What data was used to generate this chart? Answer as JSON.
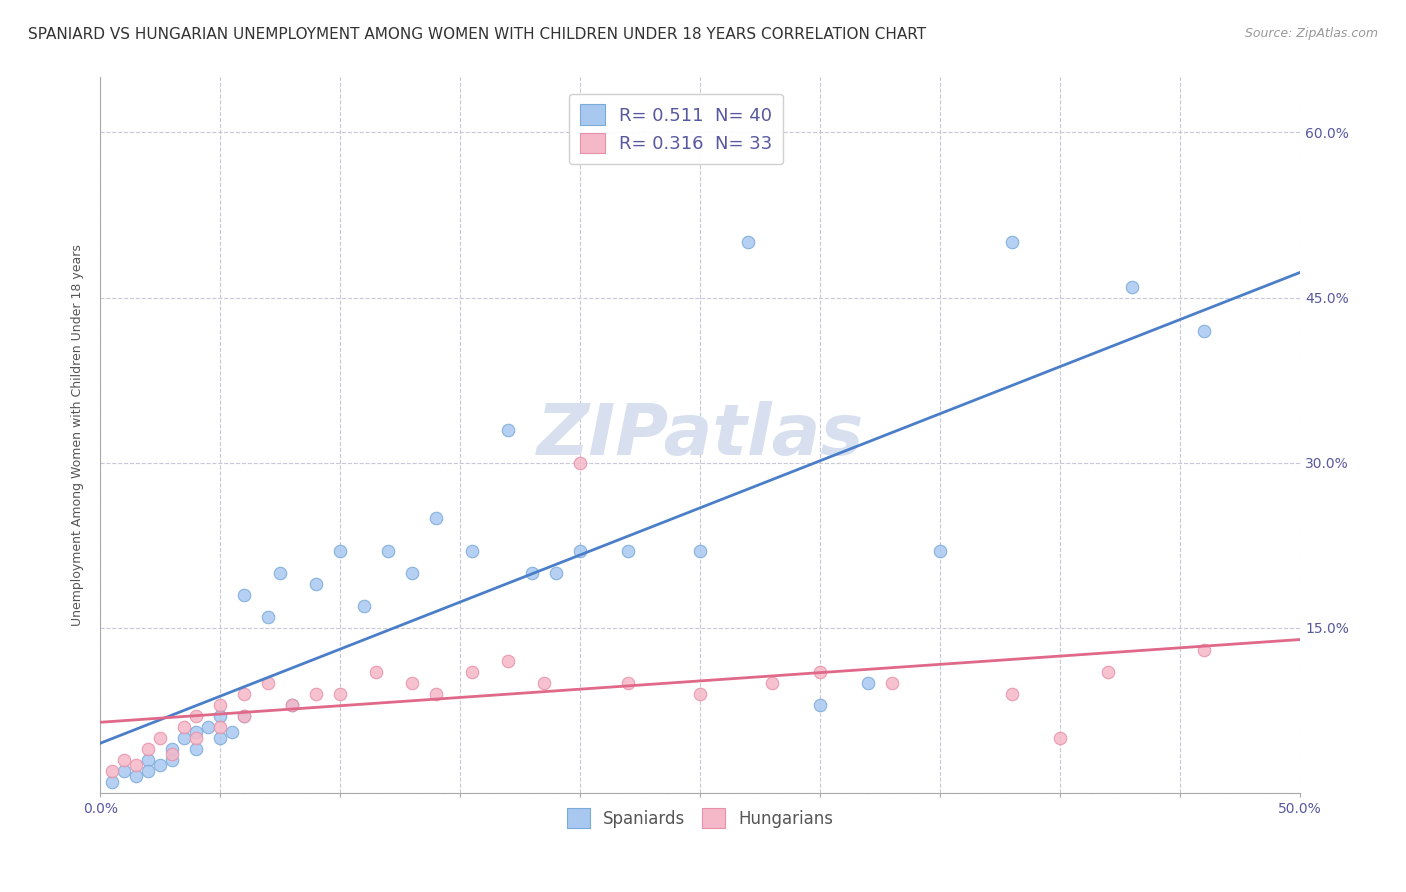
{
  "title": "SPANIARD VS HUNGARIAN UNEMPLOYMENT AMONG WOMEN WITH CHILDREN UNDER 18 YEARS CORRELATION CHART",
  "source": "Source: ZipAtlas.com",
  "ylabel": "Unemployment Among Women with Children Under 18 years",
  "xlim": [
    0.0,
    0.5
  ],
  "ylim": [
    0.0,
    0.65
  ],
  "xticks": [
    0.0,
    0.05,
    0.1,
    0.15,
    0.2,
    0.25,
    0.3,
    0.35,
    0.4,
    0.45,
    0.5
  ],
  "xtick_labels": [
    "0.0%",
    "",
    "",
    "",
    "",
    "",
    "",
    "",
    "",
    "",
    "50.0%"
  ],
  "ytick_positions": [
    0.0,
    0.15,
    0.3,
    0.45,
    0.6
  ],
  "ytick_labels_right": [
    "",
    "15.0%",
    "30.0%",
    "45.0%",
    "60.0%"
  ],
  "blue_R": 0.511,
  "blue_N": 40,
  "pink_R": 0.316,
  "pink_N": 33,
  "blue_color": "#a8c8f0",
  "blue_edge_color": "#7aaad8",
  "blue_line_color": "#4a7ec8",
  "pink_color": "#f5b8c8",
  "pink_edge_color": "#e890a8",
  "pink_line_color": "#e06888",
  "background_color": "#ffffff",
  "grid_color": "#c8c8d8",
  "watermark_color": "#d8e0f0",
  "blue_scatter_x": [
    0.005,
    0.01,
    0.015,
    0.02,
    0.02,
    0.025,
    0.03,
    0.03,
    0.035,
    0.04,
    0.04,
    0.045,
    0.05,
    0.05,
    0.055,
    0.06,
    0.06,
    0.07,
    0.075,
    0.08,
    0.09,
    0.1,
    0.11,
    0.12,
    0.13,
    0.14,
    0.155,
    0.17,
    0.18,
    0.19,
    0.2,
    0.22,
    0.25,
    0.27,
    0.3,
    0.32,
    0.35,
    0.38,
    0.43,
    0.46
  ],
  "blue_scatter_y": [
    0.01,
    0.02,
    0.015,
    0.03,
    0.02,
    0.025,
    0.04,
    0.03,
    0.05,
    0.04,
    0.055,
    0.06,
    0.05,
    0.07,
    0.055,
    0.07,
    0.18,
    0.16,
    0.2,
    0.08,
    0.19,
    0.22,
    0.17,
    0.22,
    0.2,
    0.25,
    0.22,
    0.33,
    0.2,
    0.2,
    0.22,
    0.22,
    0.22,
    0.5,
    0.08,
    0.1,
    0.22,
    0.5,
    0.46,
    0.42
  ],
  "pink_scatter_x": [
    0.005,
    0.01,
    0.015,
    0.02,
    0.025,
    0.03,
    0.035,
    0.04,
    0.04,
    0.05,
    0.05,
    0.06,
    0.06,
    0.07,
    0.08,
    0.09,
    0.1,
    0.115,
    0.13,
    0.14,
    0.155,
    0.17,
    0.185,
    0.2,
    0.22,
    0.25,
    0.28,
    0.3,
    0.33,
    0.38,
    0.4,
    0.42,
    0.46
  ],
  "pink_scatter_y": [
    0.02,
    0.03,
    0.025,
    0.04,
    0.05,
    0.035,
    0.06,
    0.05,
    0.07,
    0.06,
    0.08,
    0.07,
    0.09,
    0.1,
    0.08,
    0.09,
    0.09,
    0.11,
    0.1,
    0.09,
    0.11,
    0.12,
    0.1,
    0.3,
    0.1,
    0.09,
    0.1,
    0.11,
    0.1,
    0.09,
    0.05,
    0.11,
    0.13
  ],
  "title_fontsize": 11,
  "axis_label_fontsize": 9,
  "tick_fontsize": 10,
  "legend_fontsize": 13,
  "marker_size": 9
}
